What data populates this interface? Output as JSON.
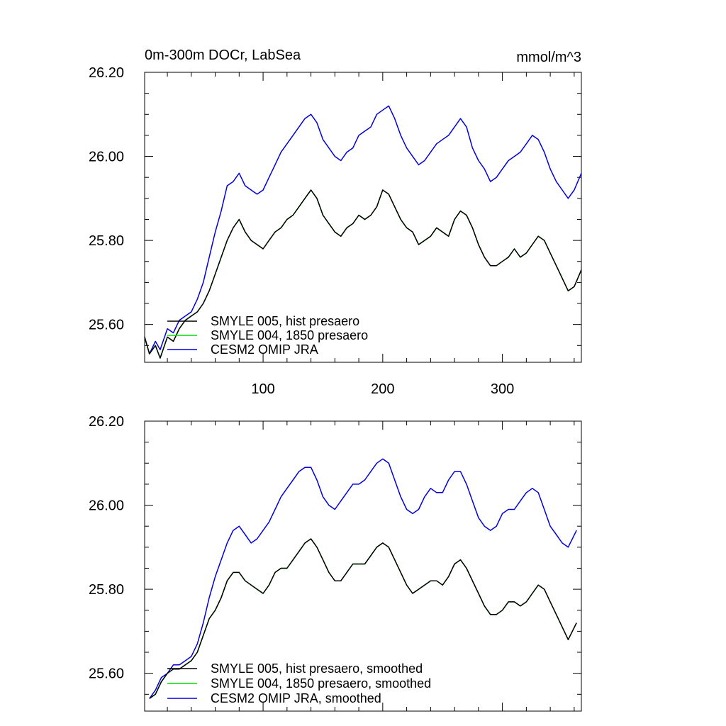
{
  "colors": {
    "smyle005": "#000000",
    "smyle004": "#00dd00",
    "cesm2": "#0000dd"
  },
  "chart_data": [
    {
      "type": "line",
      "title": "0m-300m DOCr, LabSea",
      "units": "mmol/m^3",
      "xlim": [
        1,
        366
      ],
      "ylim": [
        25.51,
        26.2
      ],
      "yticks": [
        25.6,
        25.8,
        26.0,
        26.2
      ],
      "ytick_labels": [
        "25.60",
        "25.80",
        "26.00",
        "26.20"
      ],
      "xticks": [
        100,
        200,
        300
      ],
      "xtick_labels": [
        "100",
        "200",
        "300"
      ],
      "grid": false,
      "legend_position": "lower-left",
      "series": [
        {
          "name": "SMYLE 005, hist presaero",
          "color": "#000000",
          "x": [
            1,
            5,
            10,
            14,
            20,
            25,
            30,
            35,
            40,
            45,
            50,
            55,
            60,
            65,
            70,
            75,
            80,
            85,
            90,
            95,
            100,
            105,
            110,
            115,
            120,
            125,
            130,
            135,
            140,
            145,
            150,
            155,
            160,
            165,
            170,
            175,
            180,
            185,
            190,
            195,
            200,
            205,
            210,
            215,
            220,
            225,
            230,
            235,
            240,
            245,
            250,
            255,
            260,
            265,
            270,
            275,
            280,
            285,
            290,
            295,
            300,
            305,
            310,
            315,
            320,
            325,
            330,
            335,
            340,
            345,
            350,
            355,
            360,
            366
          ],
          "y": [
            25.57,
            25.53,
            25.55,
            25.52,
            25.57,
            25.56,
            25.59,
            25.61,
            25.62,
            25.63,
            25.65,
            25.68,
            25.72,
            25.76,
            25.8,
            25.83,
            25.85,
            25.82,
            25.8,
            25.79,
            25.78,
            25.8,
            25.82,
            25.83,
            25.85,
            25.86,
            25.88,
            25.9,
            25.92,
            25.9,
            25.86,
            25.84,
            25.82,
            25.81,
            25.83,
            25.84,
            25.86,
            25.85,
            25.86,
            25.88,
            25.92,
            25.91,
            25.88,
            25.85,
            25.83,
            25.82,
            25.79,
            25.8,
            25.81,
            25.83,
            25.82,
            25.81,
            25.85,
            25.87,
            25.86,
            25.83,
            25.79,
            25.76,
            25.74,
            25.74,
            25.75,
            25.76,
            25.78,
            25.76,
            25.77,
            25.79,
            25.81,
            25.8,
            25.77,
            25.74,
            25.71,
            25.68,
            25.69,
            25.73
          ]
        },
        {
          "name": "SMYLE 004, 1850 presaero",
          "color": "#00dd00",
          "x": [
            1,
            5,
            10,
            14,
            20,
            25,
            30,
            35,
            40,
            45,
            50,
            55,
            60,
            65,
            70,
            75,
            80,
            85,
            90,
            95,
            100,
            105,
            110,
            115,
            120,
            125,
            130,
            135,
            140,
            145,
            150,
            155,
            160,
            165,
            170,
            175,
            180,
            185,
            190,
            195,
            200,
            205,
            210,
            215,
            220,
            225,
            230,
            235,
            240,
            245,
            250,
            255,
            260,
            265,
            270,
            275,
            280,
            285,
            290,
            295,
            300,
            305,
            310,
            315,
            320,
            325,
            330,
            335,
            340,
            345,
            350,
            355,
            360,
            366
          ],
          "y": [
            25.57,
            25.53,
            25.55,
            25.52,
            25.57,
            25.56,
            25.59,
            25.61,
            25.62,
            25.63,
            25.65,
            25.68,
            25.72,
            25.76,
            25.8,
            25.83,
            25.85,
            25.82,
            25.8,
            25.79,
            25.78,
            25.8,
            25.82,
            25.83,
            25.85,
            25.86,
            25.88,
            25.9,
            25.92,
            25.9,
            25.86,
            25.84,
            25.82,
            25.81,
            25.83,
            25.84,
            25.86,
            25.85,
            25.86,
            25.88,
            25.92,
            25.91,
            25.88,
            25.85,
            25.83,
            25.82,
            25.79,
            25.8,
            25.81,
            25.83,
            25.82,
            25.81,
            25.85,
            25.87,
            25.86,
            25.83,
            25.79,
            25.76,
            25.74,
            25.74,
            25.75,
            25.76,
            25.78,
            25.76,
            25.77,
            25.79,
            25.81,
            25.8,
            25.77,
            25.74,
            25.71,
            25.68,
            25.69,
            25.73
          ]
        },
        {
          "name": "CESM2 OMIP JRA",
          "color": "#0000dd",
          "x": [
            1,
            5,
            10,
            14,
            20,
            25,
            30,
            35,
            40,
            45,
            50,
            55,
            60,
            65,
            70,
            75,
            80,
            85,
            90,
            95,
            100,
            105,
            110,
            115,
            120,
            125,
            130,
            135,
            140,
            145,
            150,
            155,
            160,
            165,
            170,
            175,
            180,
            185,
            190,
            195,
            200,
            205,
            210,
            215,
            220,
            225,
            230,
            235,
            240,
            245,
            250,
            255,
            260,
            265,
            270,
            275,
            280,
            285,
            290,
            295,
            300,
            305,
            310,
            315,
            320,
            325,
            330,
            335,
            340,
            345,
            350,
            355,
            360,
            366
          ],
          "y": [
            25.57,
            25.53,
            25.56,
            25.54,
            25.59,
            25.58,
            25.61,
            25.62,
            25.63,
            25.66,
            25.7,
            25.76,
            25.82,
            25.87,
            25.93,
            25.94,
            25.96,
            25.93,
            25.92,
            25.91,
            25.92,
            25.95,
            25.98,
            26.01,
            26.03,
            26.05,
            26.07,
            26.09,
            26.1,
            26.08,
            26.04,
            26.02,
            26.0,
            25.99,
            26.01,
            26.02,
            26.05,
            26.06,
            26.07,
            26.1,
            26.11,
            26.12,
            26.09,
            26.05,
            26.02,
            26.0,
            25.98,
            25.99,
            26.01,
            26.03,
            26.04,
            26.05,
            26.07,
            26.09,
            26.07,
            26.02,
            25.99,
            25.97,
            25.94,
            25.95,
            25.97,
            25.99,
            26.0,
            26.01,
            26.03,
            26.05,
            26.04,
            26.01,
            25.97,
            25.94,
            25.92,
            25.9,
            25.92,
            25.96
          ]
        }
      ]
    },
    {
      "type": "line",
      "xlim": [
        1,
        366
      ],
      "ylim": [
        25.51,
        26.2
      ],
      "yticks": [
        25.6,
        25.8,
        26.0,
        26.2
      ],
      "ytick_labels": [
        "25.60",
        "25.80",
        "26.00",
        "26.20"
      ],
      "xticks": [
        100,
        200,
        300
      ],
      "grid": false,
      "legend_position": "lower-left",
      "series": [
        {
          "name": "SMYLE 005, hist presaero, smoothed",
          "color": "#000000",
          "x": [
            5,
            10,
            15,
            20,
            25,
            30,
            35,
            40,
            45,
            50,
            55,
            60,
            65,
            70,
            75,
            80,
            85,
            90,
            95,
            100,
            105,
            110,
            115,
            120,
            125,
            130,
            135,
            140,
            145,
            150,
            155,
            160,
            165,
            170,
            175,
            180,
            185,
            190,
            195,
            200,
            205,
            210,
            215,
            220,
            225,
            230,
            235,
            240,
            245,
            250,
            255,
            260,
            265,
            270,
            275,
            280,
            285,
            290,
            295,
            300,
            305,
            310,
            315,
            320,
            325,
            330,
            335,
            340,
            345,
            350,
            355,
            362
          ],
          "y": [
            25.54,
            25.55,
            25.58,
            25.6,
            25.61,
            25.61,
            25.62,
            25.63,
            25.65,
            25.69,
            25.73,
            25.75,
            25.78,
            25.82,
            25.84,
            25.84,
            25.82,
            25.81,
            25.8,
            25.79,
            25.81,
            25.84,
            25.85,
            25.85,
            25.87,
            25.89,
            25.91,
            25.92,
            25.9,
            25.87,
            25.84,
            25.82,
            25.82,
            25.84,
            25.86,
            25.86,
            25.86,
            25.88,
            25.9,
            25.91,
            25.9,
            25.87,
            25.84,
            25.81,
            25.79,
            25.8,
            25.81,
            25.82,
            25.82,
            25.81,
            25.83,
            25.86,
            25.87,
            25.85,
            25.82,
            25.79,
            25.76,
            25.74,
            25.74,
            25.75,
            25.77,
            25.77,
            25.76,
            25.77,
            25.79,
            25.81,
            25.8,
            25.77,
            25.74,
            25.71,
            25.68,
            25.72
          ]
        },
        {
          "name": "SMYLE 004, 1850 presaero, smoothed",
          "color": "#00dd00",
          "x": [
            5,
            10,
            15,
            20,
            25,
            30,
            35,
            40,
            45,
            50,
            55,
            60,
            65,
            70,
            75,
            80,
            85,
            90,
            95,
            100,
            105,
            110,
            115,
            120,
            125,
            130,
            135,
            140,
            145,
            150,
            155,
            160,
            165,
            170,
            175,
            180,
            185,
            190,
            195,
            200,
            205,
            210,
            215,
            220,
            225,
            230,
            235,
            240,
            245,
            250,
            255,
            260,
            265,
            270,
            275,
            280,
            285,
            290,
            295,
            300,
            305,
            310,
            315,
            320,
            325,
            330,
            335,
            340,
            345,
            350,
            355,
            362
          ],
          "y": [
            25.54,
            25.55,
            25.58,
            25.6,
            25.61,
            25.61,
            25.62,
            25.63,
            25.65,
            25.69,
            25.73,
            25.75,
            25.78,
            25.82,
            25.84,
            25.84,
            25.82,
            25.81,
            25.8,
            25.79,
            25.81,
            25.84,
            25.85,
            25.85,
            25.87,
            25.89,
            25.91,
            25.92,
            25.9,
            25.87,
            25.84,
            25.82,
            25.82,
            25.84,
            25.86,
            25.86,
            25.86,
            25.88,
            25.9,
            25.91,
            25.9,
            25.87,
            25.84,
            25.81,
            25.79,
            25.8,
            25.81,
            25.82,
            25.82,
            25.81,
            25.83,
            25.86,
            25.87,
            25.85,
            25.82,
            25.79,
            25.76,
            25.74,
            25.74,
            25.75,
            25.77,
            25.77,
            25.76,
            25.77,
            25.79,
            25.81,
            25.8,
            25.77,
            25.74,
            25.71,
            25.68,
            25.72
          ]
        },
        {
          "name": "CESM2 OMIP JRA, smoothed",
          "color": "#0000dd",
          "x": [
            5,
            10,
            15,
            20,
            25,
            30,
            35,
            40,
            45,
            50,
            55,
            60,
            65,
            70,
            75,
            80,
            85,
            90,
            95,
            100,
            105,
            110,
            115,
            120,
            125,
            130,
            135,
            140,
            145,
            150,
            155,
            160,
            165,
            170,
            175,
            180,
            185,
            190,
            195,
            200,
            205,
            210,
            215,
            220,
            225,
            230,
            235,
            240,
            245,
            250,
            255,
            260,
            265,
            270,
            275,
            280,
            285,
            290,
            295,
            300,
            305,
            310,
            315,
            320,
            325,
            330,
            335,
            340,
            345,
            350,
            355,
            362
          ],
          "y": [
            25.54,
            25.56,
            25.59,
            25.6,
            25.62,
            25.62,
            25.63,
            25.64,
            25.67,
            25.72,
            25.78,
            25.83,
            25.87,
            25.91,
            25.94,
            25.95,
            25.93,
            25.91,
            25.92,
            25.94,
            25.96,
            25.99,
            26.02,
            26.04,
            26.06,
            26.08,
            26.09,
            26.09,
            26.06,
            26.02,
            26.0,
            25.99,
            26.01,
            26.03,
            26.05,
            26.05,
            26.06,
            26.08,
            26.1,
            26.11,
            26.1,
            26.06,
            26.02,
            25.99,
            25.98,
            25.99,
            26.02,
            26.04,
            26.03,
            26.03,
            26.06,
            26.08,
            26.08,
            26.05,
            26.01,
            25.97,
            25.95,
            25.94,
            25.95,
            25.98,
            25.99,
            25.99,
            26.01,
            26.03,
            26.04,
            26.03,
            25.99,
            25.95,
            25.93,
            25.91,
            25.9,
            25.94
          ]
        }
      ]
    }
  ]
}
